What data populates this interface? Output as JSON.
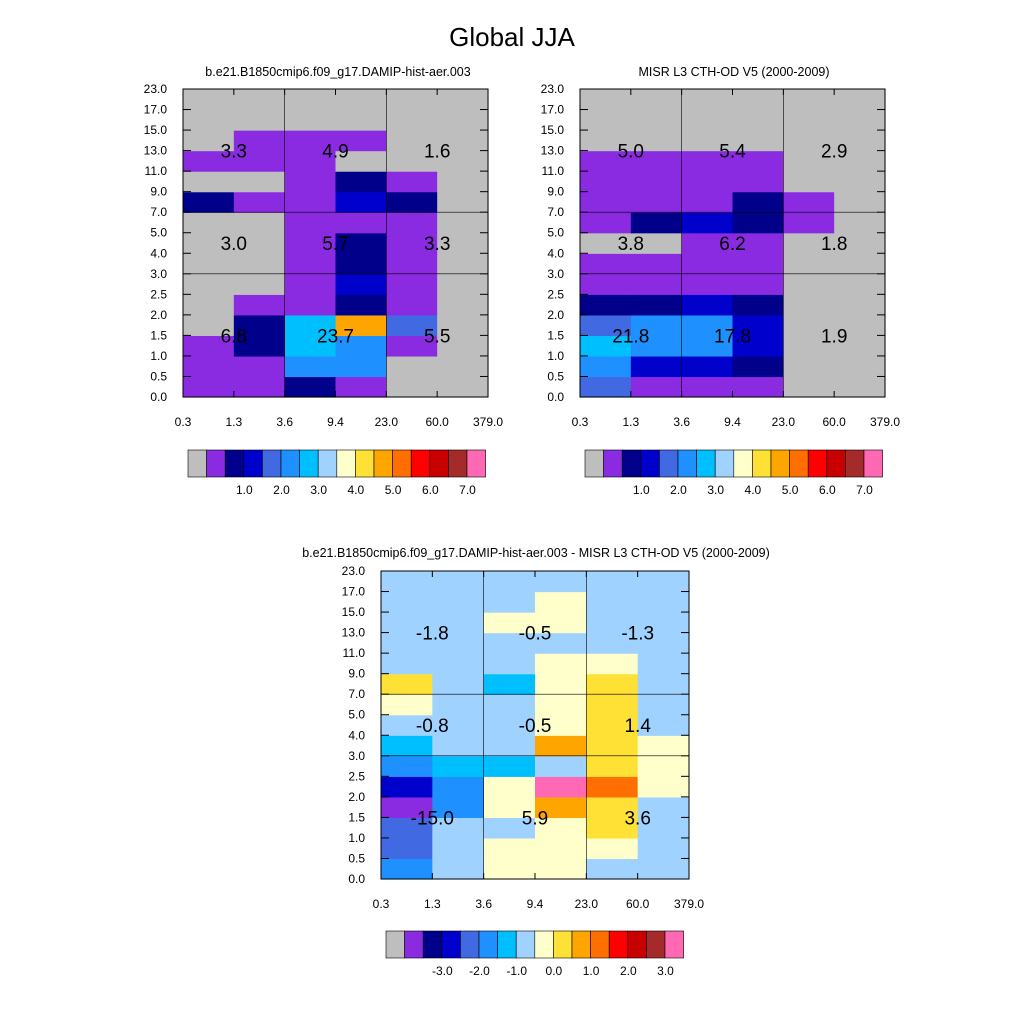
{
  "title": "Global JJA",
  "palette": [
    "#bebebe",
    "#8a2be2",
    "#00008b",
    "#0000cd",
    "#4169e1",
    "#1e90ff",
    "#00bfff",
    "#a0d2ff",
    "#ffffcc",
    "#ffe135",
    "#ffa500",
    "#ff6e00",
    "#ff0000",
    "#c80000",
    "#a52a2a",
    "#ff69b4"
  ],
  "chart_data": [
    {
      "type": "heatmap",
      "title": "b.e21.B1850cmip6.f09_g17.DAMIP-hist-aer.003",
      "x_ticks": [
        "0.3",
        "1.3",
        "3.6",
        "9.4",
        "23.0",
        "60.0",
        "379.0"
      ],
      "y_ticks": [
        "0.0",
        "0.5",
        "1.0",
        "1.5",
        "2.0",
        "2.5",
        "3.0",
        "4.0",
        "5.0",
        "7.0",
        "9.0",
        "11.0",
        "13.0",
        "15.0",
        "17.0",
        "23.0"
      ],
      "colorbar_labels": [
        "1.0",
        "2.0",
        "3.0",
        "4.0",
        "5.0",
        "6.0",
        "7.0"
      ],
      "cells": [
        [
          1,
          1,
          2,
          1,
          0,
          0
        ],
        [
          1,
          1,
          5,
          5,
          0,
          0
        ],
        [
          1,
          2,
          6,
          5,
          1,
          0
        ],
        [
          0,
          2,
          6,
          10,
          4,
          0
        ],
        [
          0,
          1,
          1,
          2,
          1,
          0
        ],
        [
          0,
          0,
          1,
          3,
          1,
          0
        ],
        [
          0,
          0,
          1,
          2,
          1,
          0
        ],
        [
          0,
          0,
          1,
          2,
          1,
          0
        ],
        [
          0,
          0,
          1,
          1,
          1,
          0
        ],
        [
          2,
          1,
          1,
          3,
          2,
          0
        ],
        [
          0,
          0,
          1,
          2,
          1,
          0
        ],
        [
          1,
          1,
          1,
          0,
          0,
          0
        ],
        [
          0,
          1,
          1,
          1,
          0,
          0
        ],
        [
          0,
          0,
          0,
          0,
          0,
          0
        ],
        [
          0,
          0,
          0,
          0,
          0,
          0
        ]
      ],
      "box_values": [
        [
          "6.8",
          "23.7",
          "5.5"
        ],
        [
          "3.0",
          "5.7",
          "3.3"
        ],
        [
          "3.3",
          "4.9",
          "1.6"
        ]
      ]
    },
    {
      "type": "heatmap",
      "title": "MISR L3 CTH-OD V5 (2000-2009)",
      "x_ticks": [
        "0.3",
        "1.3",
        "3.6",
        "9.4",
        "23.0",
        "60.0",
        "379.0"
      ],
      "y_ticks": [
        "0.0",
        "0.5",
        "1.0",
        "1.5",
        "2.0",
        "2.5",
        "3.0",
        "4.0",
        "5.0",
        "7.0",
        "9.0",
        "11.0",
        "13.0",
        "15.0",
        "17.0",
        "23.0"
      ],
      "colorbar_labels": [
        "1.0",
        "2.0",
        "3.0",
        "4.0",
        "5.0",
        "6.0",
        "7.0"
      ],
      "cells": [
        [
          4,
          1,
          1,
          1,
          0,
          0
        ],
        [
          5,
          3,
          3,
          2,
          0,
          0
        ],
        [
          6,
          5,
          5,
          3,
          0,
          0
        ],
        [
          4,
          5,
          5,
          3,
          0,
          0
        ],
        [
          2,
          2,
          3,
          2,
          0,
          0
        ],
        [
          1,
          1,
          1,
          1,
          0,
          0
        ],
        [
          1,
          1,
          1,
          1,
          0,
          0
        ],
        [
          0,
          0,
          1,
          1,
          0,
          0
        ],
        [
          1,
          2,
          3,
          2,
          1,
          0
        ],
        [
          1,
          1,
          1,
          2,
          1,
          0
        ],
        [
          1,
          1,
          1,
          1,
          0,
          0
        ],
        [
          1,
          1,
          1,
          1,
          0,
          0
        ],
        [
          0,
          0,
          0,
          0,
          0,
          0
        ],
        [
          0,
          0,
          0,
          0,
          0,
          0
        ],
        [
          0,
          0,
          0,
          0,
          0,
          0
        ]
      ],
      "box_values": [
        [
          "21.8",
          "17.8",
          "1.9"
        ],
        [
          "3.8",
          "6.2",
          "1.8"
        ],
        [
          "5.0",
          "5.4",
          "2.9"
        ]
      ]
    },
    {
      "type": "heatmap",
      "title": "b.e21.B1850cmip6.f09_g17.DAMIP-hist-aer.003 - MISR L3 CTH-OD V5 (2000-2009)",
      "x_ticks": [
        "0.3",
        "1.3",
        "3.6",
        "9.4",
        "23.0",
        "60.0",
        "379.0"
      ],
      "y_ticks": [
        "0.0",
        "0.5",
        "1.0",
        "1.5",
        "2.0",
        "2.5",
        "3.0",
        "4.0",
        "5.0",
        "7.0",
        "9.0",
        "11.0",
        "13.0",
        "15.0",
        "17.0",
        "23.0"
      ],
      "colorbar_labels": [
        "-3.0",
        "-2.0",
        "-1.0",
        "0.0",
        "1.0",
        "2.0",
        "3.0"
      ],
      "cells": [
        [
          5,
          7,
          8,
          8,
          7,
          7
        ],
        [
          4,
          7,
          8,
          8,
          8,
          7
        ],
        [
          4,
          7,
          7,
          8,
          9,
          7
        ],
        [
          1,
          5,
          8,
          10,
          9,
          7
        ],
        [
          3,
          5,
          8,
          15,
          11,
          8
        ],
        [
          5,
          6,
          6,
          7,
          9,
          8
        ],
        [
          6,
          7,
          7,
          10,
          9,
          8
        ],
        [
          7,
          7,
          7,
          8,
          9,
          7
        ],
        [
          8,
          7,
          7,
          8,
          9,
          7
        ],
        [
          9,
          7,
          6,
          8,
          9,
          7
        ],
        [
          7,
          7,
          7,
          8,
          8,
          7
        ],
        [
          7,
          7,
          7,
          7,
          7,
          7
        ],
        [
          7,
          7,
          8,
          8,
          7,
          7
        ],
        [
          7,
          7,
          7,
          8,
          7,
          7
        ],
        [
          7,
          7,
          7,
          7,
          7,
          7
        ]
      ],
      "box_values": [
        [
          "-15.0",
          "5.9",
          "3.6"
        ],
        [
          "-0.8",
          "-0.5",
          "1.4"
        ],
        [
          "-1.8",
          "-0.5",
          "-1.3"
        ]
      ]
    }
  ]
}
